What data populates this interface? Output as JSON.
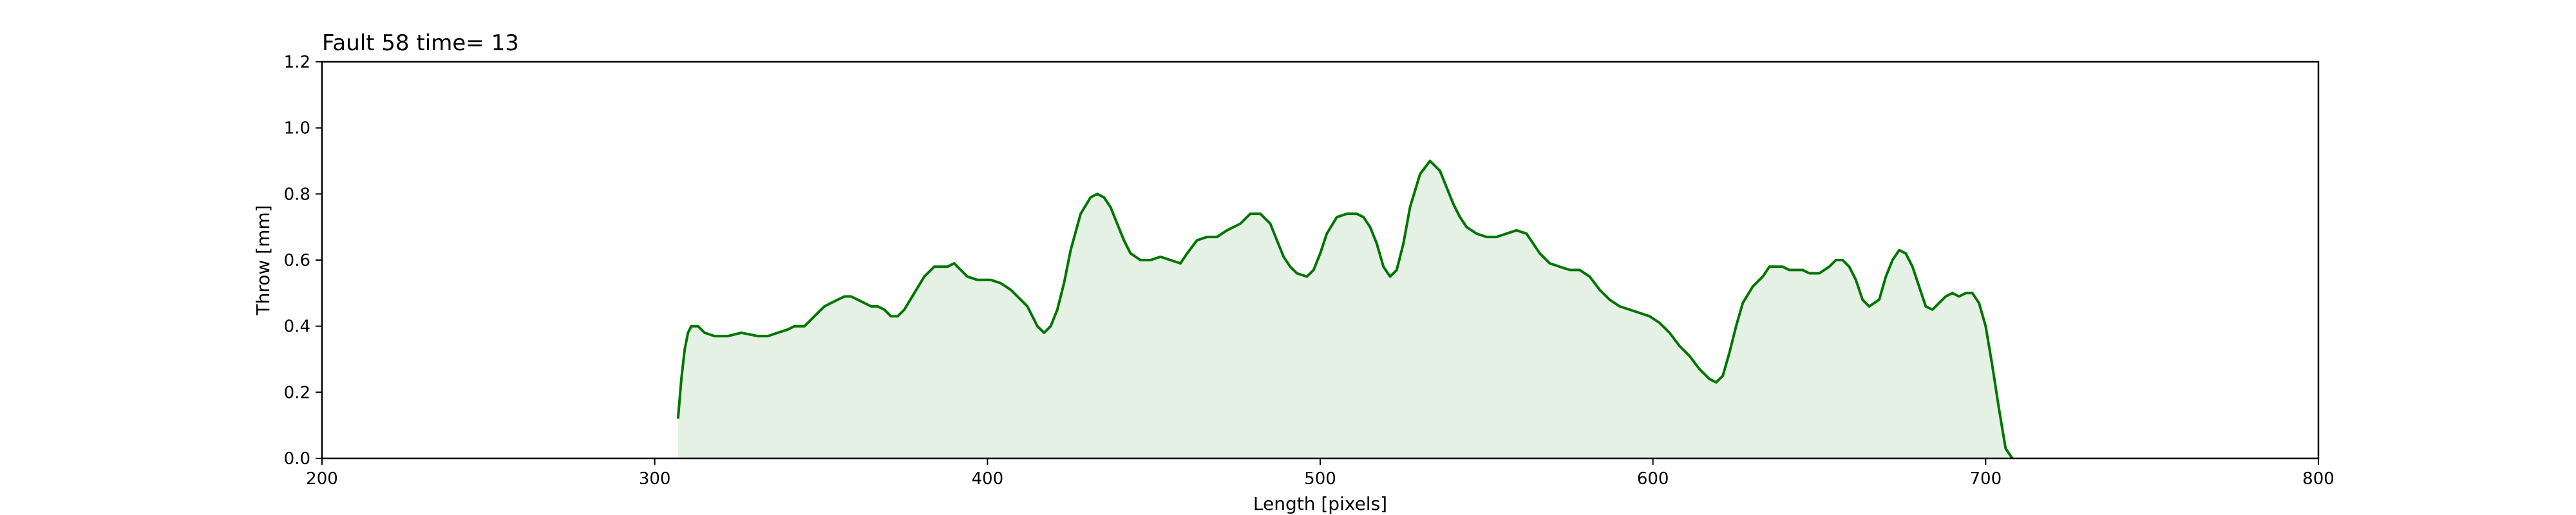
{
  "chart_data": {
    "type": "area",
    "title": "Fault 58 time= 13",
    "xlabel": "Length [pixels]",
    "ylabel": "Throw [mm]",
    "xlim": [
      200,
      800
    ],
    "ylim": [
      0,
      1.2
    ],
    "xticks": [
      200,
      300,
      400,
      500,
      600,
      700,
      800
    ],
    "yticks": [
      0.0,
      0.2,
      0.4,
      0.6,
      0.8,
      1.0,
      1.2
    ],
    "xtick_labels": [
      "200",
      "300",
      "400",
      "500",
      "600",
      "700",
      "800"
    ],
    "ytick_labels": [
      "0.0",
      "0.2",
      "0.4",
      "0.6",
      "0.8",
      "1.0",
      "1.2"
    ],
    "grid": false,
    "colors": {
      "line": "#007500",
      "fill": "#e5f1e5"
    },
    "series": [
      {
        "x": [
          307,
          308,
          309,
          310,
          311,
          312,
          313,
          315,
          318,
          322,
          326,
          331,
          334,
          337,
          340,
          342,
          345,
          347,
          349,
          351,
          353,
          355,
          357,
          359,
          361,
          363,
          365,
          367,
          369,
          371,
          373,
          375,
          378,
          381,
          384,
          386,
          388,
          390,
          392,
          394,
          397,
          401,
          404,
          407,
          410,
          412,
          414,
          415,
          417,
          419,
          421,
          423,
          425,
          428,
          431,
          433,
          435,
          437,
          439,
          441,
          443,
          446,
          449,
          452,
          455,
          458,
          460,
          463,
          466,
          469,
          472,
          476,
          479,
          482,
          485,
          487,
          489,
          491,
          493,
          496,
          498,
          500,
          502,
          505,
          508,
          511,
          513,
          515,
          517,
          519,
          521,
          523,
          525,
          527,
          530,
          533,
          536,
          538,
          540,
          542,
          544,
          547,
          550,
          553,
          556,
          559,
          562,
          564,
          566,
          569,
          572,
          575,
          578,
          581,
          584,
          587,
          590,
          593,
          596,
          599,
          602,
          605,
          608,
          611,
          614,
          617,
          619,
          621,
          623,
          625,
          627,
          630,
          633,
          635,
          637,
          639,
          641,
          643,
          645,
          647,
          650,
          653,
          655,
          657,
          659,
          661,
          663,
          665,
          668,
          670,
          672,
          674,
          676,
          678,
          680,
          682,
          684,
          686,
          688,
          690,
          692,
          694,
          696,
          698,
          700,
          702,
          704,
          706,
          708
        ],
        "y": [
          0.12,
          0.24,
          0.33,
          0.38,
          0.4,
          0.4,
          0.4,
          0.38,
          0.37,
          0.37,
          0.38,
          0.37,
          0.37,
          0.38,
          0.39,
          0.4,
          0.4,
          0.42,
          0.44,
          0.46,
          0.47,
          0.48,
          0.49,
          0.49,
          0.48,
          0.47,
          0.46,
          0.46,
          0.45,
          0.43,
          0.43,
          0.45,
          0.5,
          0.55,
          0.58,
          0.58,
          0.58,
          0.59,
          0.57,
          0.55,
          0.54,
          0.54,
          0.53,
          0.51,
          0.48,
          0.46,
          0.42,
          0.4,
          0.38,
          0.4,
          0.45,
          0.53,
          0.63,
          0.74,
          0.79,
          0.8,
          0.79,
          0.76,
          0.71,
          0.66,
          0.62,
          0.6,
          0.6,
          0.61,
          0.6,
          0.59,
          0.62,
          0.66,
          0.67,
          0.67,
          0.69,
          0.71,
          0.74,
          0.74,
          0.71,
          0.66,
          0.61,
          0.58,
          0.56,
          0.55,
          0.57,
          0.62,
          0.68,
          0.73,
          0.74,
          0.74,
          0.73,
          0.7,
          0.65,
          0.58,
          0.55,
          0.57,
          0.65,
          0.76,
          0.86,
          0.9,
          0.87,
          0.82,
          0.77,
          0.73,
          0.7,
          0.68,
          0.67,
          0.67,
          0.68,
          0.69,
          0.68,
          0.65,
          0.62,
          0.59,
          0.58,
          0.57,
          0.57,
          0.55,
          0.51,
          0.48,
          0.46,
          0.45,
          0.44,
          0.43,
          0.41,
          0.38,
          0.34,
          0.31,
          0.27,
          0.24,
          0.23,
          0.25,
          0.32,
          0.4,
          0.47,
          0.52,
          0.55,
          0.58,
          0.58,
          0.58,
          0.57,
          0.57,
          0.57,
          0.56,
          0.56,
          0.58,
          0.6,
          0.6,
          0.58,
          0.54,
          0.48,
          0.46,
          0.48,
          0.55,
          0.6,
          0.63,
          0.62,
          0.58,
          0.52,
          0.46,
          0.45,
          0.47,
          0.49,
          0.5,
          0.49,
          0.5,
          0.5,
          0.47,
          0.4,
          0.28,
          0.15,
          0.03,
          0.0
        ]
      }
    ]
  }
}
